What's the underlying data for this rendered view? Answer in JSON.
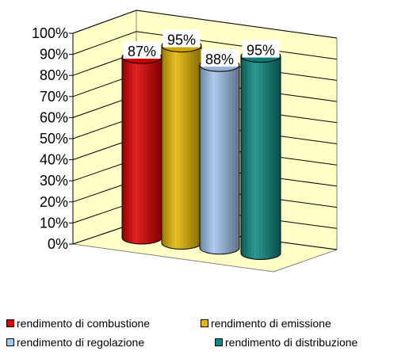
{
  "chart_data": {
    "type": "bar",
    "style": "3d-cylinder",
    "categories": [
      "rendimento di combustione",
      "rendimento di emissione",
      "rendimento di regolazione",
      "rendimento di distribuzione"
    ],
    "values": [
      87,
      95,
      88,
      95
    ],
    "data_labels": [
      "87%",
      "95%",
      "88%",
      "95%"
    ],
    "colors": [
      "#e00000",
      "#e6b800",
      "#a4c6ef",
      "#0c8a84"
    ],
    "y_ticks": [
      "0%",
      "10%",
      "20%",
      "30%",
      "40%",
      "50%",
      "60%",
      "70%",
      "80%",
      "90%",
      "100%"
    ],
    "ylim": [
      0,
      100
    ],
    "grid": true,
    "wall_color": "#ffffc6",
    "legend_position": "bottom",
    "legend": [
      {
        "label": "rendimento di combustione",
        "color": "#e00000"
      },
      {
        "label": "rendimento di emissione",
        "color": "#e6b800"
      },
      {
        "label": "rendimento di regolazione",
        "color": "#a4c6ef"
      },
      {
        "label": "rendimento di distribuzione",
        "color": "#0c8a84"
      }
    ]
  }
}
